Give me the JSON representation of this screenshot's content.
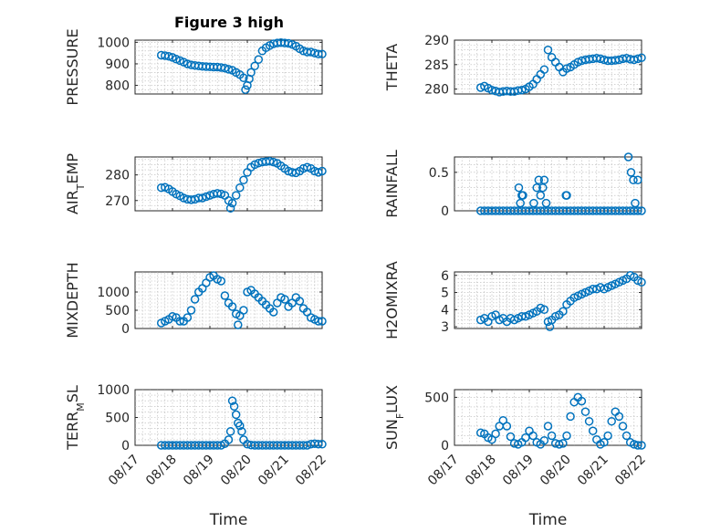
{
  "title": "Figure 3 high",
  "marker_color": "#0072BD",
  "chart_data": [
    {
      "type": "scatter",
      "ylabel": "PRESSURE",
      "xlabel": "",
      "ylim": [
        760,
        1010
      ],
      "yticks": [
        800,
        900,
        1000
      ],
      "xlim": [
        0,
        5
      ],
      "xticks": [
        0,
        1,
        2,
        3,
        4,
        5
      ],
      "xticklabels": [
        "08/17",
        "08/18",
        "08/19",
        "08/20",
        "08/21",
        "08/22"
      ],
      "grid": true,
      "series": [
        {
          "x": [
            0.7,
            0.8,
            0.9,
            1.0,
            1.1,
            1.2,
            1.3,
            1.4,
            1.5,
            1.6,
            1.7,
            1.8,
            1.9,
            2.0,
            2.1,
            2.2,
            2.3,
            2.4,
            2.5,
            2.6,
            2.7,
            2.8,
            2.9,
            2.95,
            3.0,
            3.05,
            3.1,
            3.2,
            3.3,
            3.4,
            3.5,
            3.6,
            3.7,
            3.8,
            3.9,
            4.0,
            4.1,
            4.2,
            4.3,
            4.4,
            4.5,
            4.6,
            4.7,
            4.8,
            4.9,
            5.0
          ],
          "y": [
            940,
            938,
            935,
            930,
            922,
            915,
            908,
            900,
            895,
            892,
            890,
            888,
            887,
            886,
            885,
            885,
            883,
            880,
            875,
            870,
            860,
            850,
            835,
            780,
            800,
            830,
            860,
            890,
            920,
            960,
            975,
            985,
            993,
            997,
            998,
            997,
            995,
            990,
            982,
            970,
            960,
            955,
            955,
            950,
            945,
            945
          ]
        }
      ]
    },
    {
      "type": "scatter",
      "ylabel": "THETA",
      "xlabel": "",
      "ylim": [
        279,
        290
      ],
      "yticks": [
        280,
        285,
        290
      ],
      "xlim": [
        0,
        5
      ],
      "xticks": [
        0,
        1,
        2,
        3,
        4,
        5
      ],
      "xticklabels": [
        "08/17",
        "08/18",
        "08/19",
        "08/20",
        "08/21",
        "08/22"
      ],
      "grid": true,
      "series": [
        {
          "x": [
            0.7,
            0.8,
            0.9,
            1.0,
            1.1,
            1.2,
            1.3,
            1.4,
            1.5,
            1.6,
            1.7,
            1.8,
            1.9,
            2.0,
            2.1,
            2.2,
            2.3,
            2.4,
            2.5,
            2.6,
            2.7,
            2.8,
            2.9,
            3.0,
            3.1,
            3.2,
            3.3,
            3.4,
            3.5,
            3.6,
            3.7,
            3.8,
            3.9,
            4.0,
            4.1,
            4.2,
            4.3,
            4.4,
            4.5,
            4.6,
            4.7,
            4.8,
            4.9,
            5.0
          ],
          "y": [
            280.3,
            280.6,
            280.2,
            279.8,
            279.6,
            279.4,
            279.5,
            279.6,
            279.5,
            279.5,
            279.7,
            279.8,
            280.0,
            280.5,
            281.0,
            282.0,
            283.0,
            284.0,
            288.0,
            286.5,
            285.5,
            284.5,
            283.5,
            284.2,
            284.5,
            285.0,
            285.5,
            285.8,
            286.0,
            286.1,
            286.2,
            286.3,
            286.2,
            286.0,
            285.8,
            285.8,
            285.9,
            286.0,
            286.2,
            286.3,
            286.1,
            286.0,
            286.2,
            286.4
          ]
        }
      ]
    },
    {
      "type": "scatter",
      "ylabel": "AIR_TEMP",
      "xlabel": "",
      "ylim": [
        266,
        287
      ],
      "yticks": [
        270,
        280
      ],
      "xlim": [
        0,
        5
      ],
      "xticks": [
        0,
        1,
        2,
        3,
        4,
        5
      ],
      "xticklabels": [
        "08/17",
        "08/18",
        "08/19",
        "08/20",
        "08/21",
        "08/22"
      ],
      "grid": true,
      "series": [
        {
          "x": [
            0.7,
            0.8,
            0.9,
            1.0,
            1.1,
            1.2,
            1.3,
            1.4,
            1.5,
            1.6,
            1.7,
            1.8,
            1.9,
            2.0,
            2.1,
            2.2,
            2.3,
            2.4,
            2.5,
            2.55,
            2.6,
            2.7,
            2.8,
            2.9,
            3.0,
            3.1,
            3.2,
            3.3,
            3.4,
            3.5,
            3.6,
            3.7,
            3.8,
            3.9,
            4.0,
            4.1,
            4.2,
            4.3,
            4.4,
            4.5,
            4.6,
            4.7,
            4.8,
            4.9,
            5.0
          ],
          "y": [
            275.0,
            275.2,
            274.5,
            273.5,
            272.5,
            271.8,
            271.0,
            270.5,
            270.3,
            270.5,
            271.0,
            271.0,
            271.5,
            272.0,
            272.5,
            272.8,
            272.6,
            272.0,
            270.0,
            267.0,
            269.0,
            272.0,
            275.0,
            278.0,
            281.0,
            283.0,
            284.0,
            284.6,
            285.0,
            285.2,
            285.3,
            285.0,
            284.5,
            283.5,
            282.5,
            281.5,
            281.0,
            280.8,
            281.5,
            282.5,
            283.0,
            282.5,
            281.5,
            281.0,
            281.5
          ]
        }
      ]
    },
    {
      "type": "scatter",
      "ylabel": "RAINFALL",
      "xlabel": "",
      "ylim": [
        0,
        0.7
      ],
      "yticks": [
        0,
        0.5
      ],
      "xlim": [
        0,
        5
      ],
      "xticks": [
        0,
        1,
        2,
        3,
        4,
        5
      ],
      "xticklabels": [
        "08/17",
        "08/18",
        "08/19",
        "08/20",
        "08/21",
        "08/22"
      ],
      "grid": true,
      "series": [
        {
          "x": [
            0.7,
            0.8,
            0.9,
            1.0,
            1.1,
            1.2,
            1.3,
            1.4,
            1.5,
            1.6,
            1.7,
            1.8,
            1.9,
            2.0,
            2.1,
            2.2,
            2.3,
            2.4,
            2.5,
            2.6,
            2.7,
            2.8,
            2.9,
            3.0,
            3.1,
            3.2,
            3.3,
            3.4,
            3.5,
            3.6,
            3.7,
            3.8,
            3.9,
            4.0,
            4.1,
            4.2,
            4.3,
            4.4,
            4.5,
            4.6,
            4.7,
            4.8,
            4.9,
            5.0,
            1.72,
            1.76,
            1.8,
            1.83,
            2.12,
            2.2,
            2.25,
            2.3,
            2.36,
            2.4,
            2.45,
            2.98,
            3.0,
            4.65,
            4.72,
            4.78,
            4.83,
            4.9
          ],
          "y": [
            0,
            0,
            0,
            0,
            0,
            0,
            0,
            0,
            0,
            0,
            0,
            0,
            0,
            0,
            0,
            0,
            0,
            0,
            0,
            0,
            0,
            0,
            0,
            0,
            0,
            0,
            0,
            0,
            0,
            0,
            0,
            0,
            0,
            0,
            0,
            0,
            0,
            0,
            0,
            0,
            0,
            0,
            0,
            0,
            0.3,
            0.1,
            0.2,
            0.2,
            0.1,
            0.3,
            0.4,
            0.2,
            0.3,
            0.4,
            0.1,
            0.2,
            0.2,
            0.7,
            0.5,
            0.4,
            0.1,
            0.4
          ]
        }
      ]
    },
    {
      "type": "scatter",
      "ylabel": "MIXDEPTH",
      "xlabel": "",
      "ylim": [
        0,
        1550
      ],
      "yticks": [
        0,
        500,
        1000
      ],
      "xlim": [
        0,
        5
      ],
      "xticks": [
        0,
        1,
        2,
        3,
        4,
        5
      ],
      "xticklabels": [
        "08/17",
        "08/18",
        "08/19",
        "08/20",
        "08/21",
        "08/22"
      ],
      "grid": true,
      "series": [
        {
          "x": [
            0.7,
            0.8,
            0.9,
            1.0,
            1.1,
            1.2,
            1.3,
            1.4,
            1.5,
            1.6,
            1.7,
            1.8,
            1.9,
            2.0,
            2.1,
            2.2,
            2.3,
            2.4,
            2.5,
            2.6,
            2.7,
            2.75,
            2.8,
            2.9,
            3.0,
            3.1,
            3.2,
            3.3,
            3.4,
            3.5,
            3.6,
            3.7,
            3.8,
            3.9,
            4.0,
            4.1,
            4.2,
            4.3,
            4.4,
            4.5,
            4.6,
            4.7,
            4.8,
            4.9,
            5.0
          ],
          "y": [
            150,
            200,
            250,
            330,
            300,
            200,
            200,
            300,
            500,
            800,
            1000,
            1100,
            1250,
            1400,
            1450,
            1350,
            1300,
            900,
            700,
            600,
            400,
            100,
            350,
            500,
            1000,
            1050,
            950,
            850,
            750,
            650,
            550,
            450,
            700,
            850,
            800,
            600,
            700,
            850,
            750,
            550,
            450,
            300,
            250,
            200,
            200
          ]
        }
      ]
    },
    {
      "type": "scatter",
      "ylabel": "H2OMIXRA",
      "xlabel": "",
      "ylim": [
        2.9,
        6.2
      ],
      "yticks": [
        3,
        4,
        5,
        6
      ],
      "xlim": [
        0,
        5
      ],
      "xticks": [
        0,
        1,
        2,
        3,
        4,
        5
      ],
      "xticklabels": [
        "08/17",
        "08/18",
        "08/19",
        "08/20",
        "08/21",
        "08/22"
      ],
      "grid": true,
      "series": [
        {
          "x": [
            0.7,
            0.8,
            0.9,
            1.0,
            1.1,
            1.2,
            1.3,
            1.4,
            1.5,
            1.6,
            1.7,
            1.8,
            1.9,
            2.0,
            2.1,
            2.2,
            2.3,
            2.4,
            2.5,
            2.55,
            2.6,
            2.7,
            2.8,
            2.9,
            3.0,
            3.1,
            3.2,
            3.3,
            3.4,
            3.5,
            3.6,
            3.7,
            3.8,
            3.9,
            4.0,
            4.1,
            4.2,
            4.3,
            4.4,
            4.5,
            4.6,
            4.7,
            4.8,
            4.9,
            5.0
          ],
          "y": [
            3.4,
            3.5,
            3.3,
            3.6,
            3.7,
            3.4,
            3.5,
            3.3,
            3.5,
            3.4,
            3.5,
            3.6,
            3.6,
            3.7,
            3.8,
            3.9,
            4.1,
            4.0,
            3.3,
            3.0,
            3.4,
            3.6,
            3.7,
            3.9,
            4.3,
            4.5,
            4.7,
            4.8,
            4.9,
            5.0,
            5.1,
            5.2,
            5.2,
            5.3,
            5.2,
            5.3,
            5.4,
            5.5,
            5.6,
            5.7,
            5.8,
            6.0,
            5.9,
            5.7,
            5.6
          ]
        }
      ]
    },
    {
      "type": "scatter",
      "ylabel": "TERR_MSL",
      "xlabel": "Time",
      "ylim": [
        0,
        1000
      ],
      "yticks": [
        0,
        500,
        1000
      ],
      "xlim": [
        0,
        5
      ],
      "xticks": [
        0,
        1,
        2,
        3,
        4,
        5
      ],
      "xticklabels": [
        "08/17",
        "08/18",
        "08/19",
        "08/20",
        "08/21",
        "08/22"
      ],
      "grid": true,
      "series": [
        {
          "x": [
            0.7,
            0.8,
            0.9,
            1.0,
            1.1,
            1.2,
            1.3,
            1.4,
            1.5,
            1.6,
            1.7,
            1.8,
            1.9,
            2.0,
            2.1,
            2.2,
            2.3,
            2.4,
            2.5,
            2.55,
            2.6,
            2.65,
            2.7,
            2.75,
            2.8,
            2.85,
            2.9,
            3.0,
            3.1,
            3.2,
            3.3,
            3.4,
            3.5,
            3.6,
            3.7,
            3.8,
            3.9,
            4.0,
            4.1,
            4.2,
            4.3,
            4.4,
            4.5,
            4.6,
            4.7,
            4.8,
            4.9,
            5.0
          ],
          "y": [
            0,
            0,
            0,
            0,
            0,
            0,
            0,
            0,
            0,
            0,
            0,
            0,
            0,
            0,
            0,
            0,
            0,
            30,
            100,
            250,
            800,
            700,
            550,
            400,
            350,
            250,
            100,
            20,
            5,
            0,
            0,
            0,
            0,
            0,
            0,
            0,
            0,
            0,
            0,
            0,
            0,
            0,
            0,
            0,
            20,
            30,
            20,
            20
          ]
        }
      ]
    },
    {
      "type": "scatter",
      "ylabel": "SUN_FLUX",
      "xlabel": "Time",
      "ylim": [
        0,
        580
      ],
      "yticks": [
        0,
        500
      ],
      "xlim": [
        0,
        5
      ],
      "xticks": [
        0,
        1,
        2,
        3,
        4,
        5
      ],
      "xticklabels": [
        "08/17",
        "08/18",
        "08/19",
        "08/20",
        "08/21",
        "08/22"
      ],
      "grid": true,
      "series": [
        {
          "x": [
            0.7,
            0.8,
            0.9,
            1.0,
            1.1,
            1.2,
            1.3,
            1.4,
            1.5,
            1.6,
            1.7,
            1.8,
            1.9,
            2.0,
            2.1,
            2.2,
            2.3,
            2.4,
            2.5,
            2.6,
            2.7,
            2.8,
            2.9,
            3.0,
            3.1,
            3.2,
            3.3,
            3.4,
            3.5,
            3.6,
            3.7,
            3.8,
            3.9,
            4.0,
            4.1,
            4.2,
            4.3,
            4.4,
            4.5,
            4.6,
            4.7,
            4.8,
            4.9,
            5.0
          ],
          "y": [
            130,
            120,
            80,
            60,
            120,
            200,
            260,
            200,
            90,
            20,
            10,
            30,
            80,
            150,
            100,
            30,
            10,
            50,
            200,
            100,
            20,
            10,
            20,
            100,
            300,
            450,
            500,
            460,
            350,
            250,
            150,
            60,
            10,
            30,
            100,
            250,
            350,
            300,
            200,
            100,
            30,
            10,
            0,
            0
          ]
        }
      ]
    }
  ]
}
